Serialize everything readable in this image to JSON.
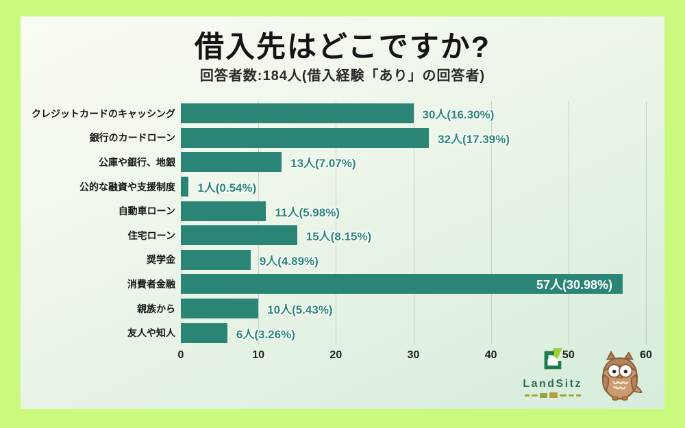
{
  "frame": {
    "border_color": "#c9fa7d",
    "panel_gradient_start": "#fafcf4",
    "panel_gradient_end": "#d6ecdb"
  },
  "header": {
    "title": "借入先はどこですか?",
    "subtitle": "回答者数:184人(借入経験「あり」の回答者)"
  },
  "chart_data": {
    "type": "bar",
    "orientation": "horizontal",
    "title": "借入先はどこですか?",
    "subtitle": "回答者数:184人(借入経験「あり」の回答者)",
    "total_respondents": 184,
    "categories": [
      "クレジットカードのキャッシング",
      "銀行のカードローン",
      "公庫や銀行、地銀",
      "公的な融資や支援制度",
      "自動車ローン",
      "住宅ローン",
      "奨学金",
      "消費者金融",
      "親族から",
      "友人や知人"
    ],
    "values": [
      30,
      32,
      13,
      1,
      11,
      15,
      9,
      57,
      10,
      6
    ],
    "percentages": [
      16.3,
      17.39,
      7.07,
      0.54,
      5.98,
      8.15,
      4.89,
      30.98,
      5.43,
      3.26
    ],
    "value_labels": [
      "30人(16.30%)",
      "32人(17.39%)",
      "13人(7.07%)",
      "1人(0.54%)",
      "11人(5.98%)",
      "15人(8.15%)",
      "9人(4.89%)",
      "57人(30.98%)",
      "10人(5.43%)",
      "6人(3.26%)"
    ],
    "xticks": [
      0,
      10,
      20,
      30,
      40,
      50,
      60
    ],
    "xlim": [
      0,
      60
    ],
    "bar_color": "#2a8577",
    "label_color": "#2a8577",
    "inside_label_color": "#ffffff",
    "grid": "vertical",
    "legend": "none"
  },
  "footer": {
    "brand": "LandSitz",
    "mascot": "owl"
  }
}
